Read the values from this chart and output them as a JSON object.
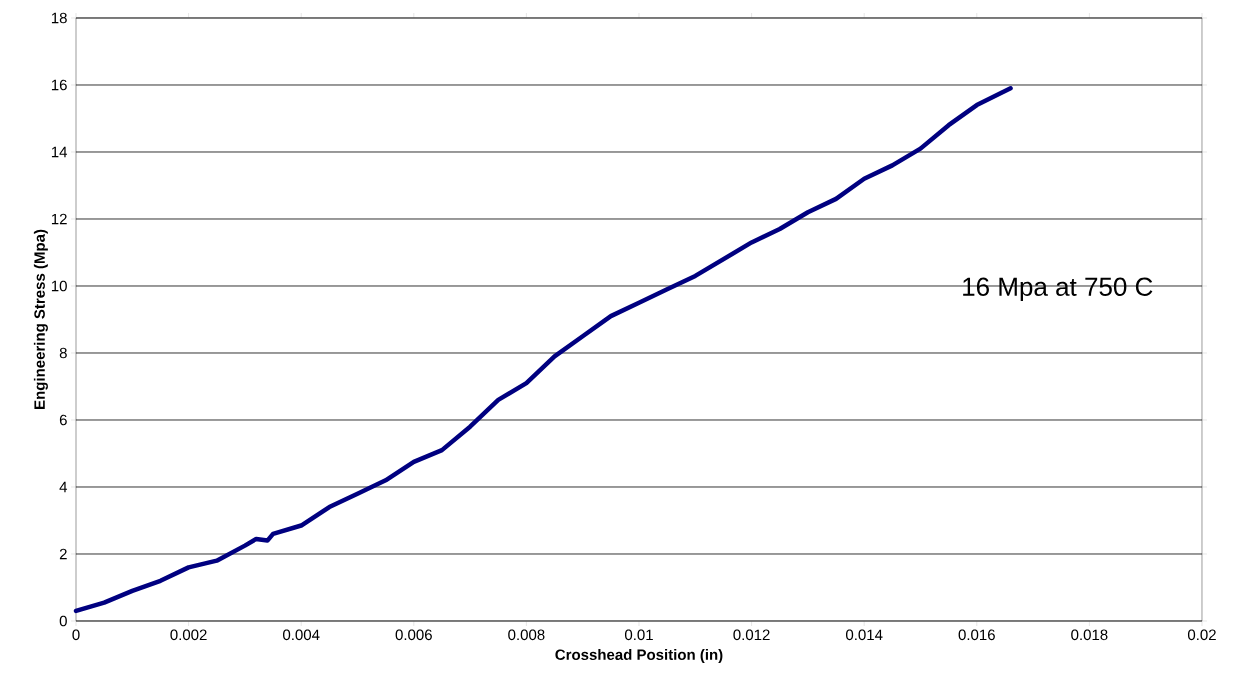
{
  "chart_data": {
    "type": "line",
    "xlabel": "Crosshead Position (in)",
    "ylabel": "Engineering Stress (Mpa)",
    "x": [
      0,
      0.0005,
      0.001,
      0.0015,
      0.002,
      0.0025,
      0.003,
      0.0032,
      0.0034,
      0.0035,
      0.004,
      0.0045,
      0.005,
      0.0055,
      0.006,
      0.0065,
      0.007,
      0.0075,
      0.008,
      0.0085,
      0.009,
      0.0095,
      0.01,
      0.0105,
      0.011,
      0.0115,
      0.012,
      0.0125,
      0.013,
      0.0135,
      0.014,
      0.0145,
      0.015,
      0.0155,
      0.016,
      0.0166
    ],
    "series": [
      {
        "color": "#000080",
        "values": [
          0.3,
          0.55,
          0.9,
          1.2,
          1.6,
          1.8,
          2.25,
          2.45,
          2.4,
          2.6,
          2.85,
          3.4,
          3.8,
          4.2,
          4.75,
          5.1,
          5.8,
          6.6,
          7.1,
          7.9,
          8.5,
          9.1,
          9.5,
          9.9,
          10.3,
          10.8,
          11.3,
          11.7,
          12.2,
          12.6,
          13.2,
          13.6,
          14.1,
          14.8,
          15.4,
          15.9
        ]
      }
    ],
    "xlim": [
      0,
      0.02
    ],
    "ylim": [
      0,
      18
    ],
    "xticks": [
      0,
      0.002,
      0.004,
      0.006,
      0.008,
      0.01,
      0.012,
      0.014,
      0.016,
      0.018,
      0.02
    ],
    "yticks": [
      0,
      2,
      4,
      6,
      8,
      10,
      12,
      14,
      16,
      18
    ],
    "grid": "y",
    "marker": "none",
    "line_style": "solid",
    "annotations": [
      "16 Mpa at 750 C"
    ]
  }
}
